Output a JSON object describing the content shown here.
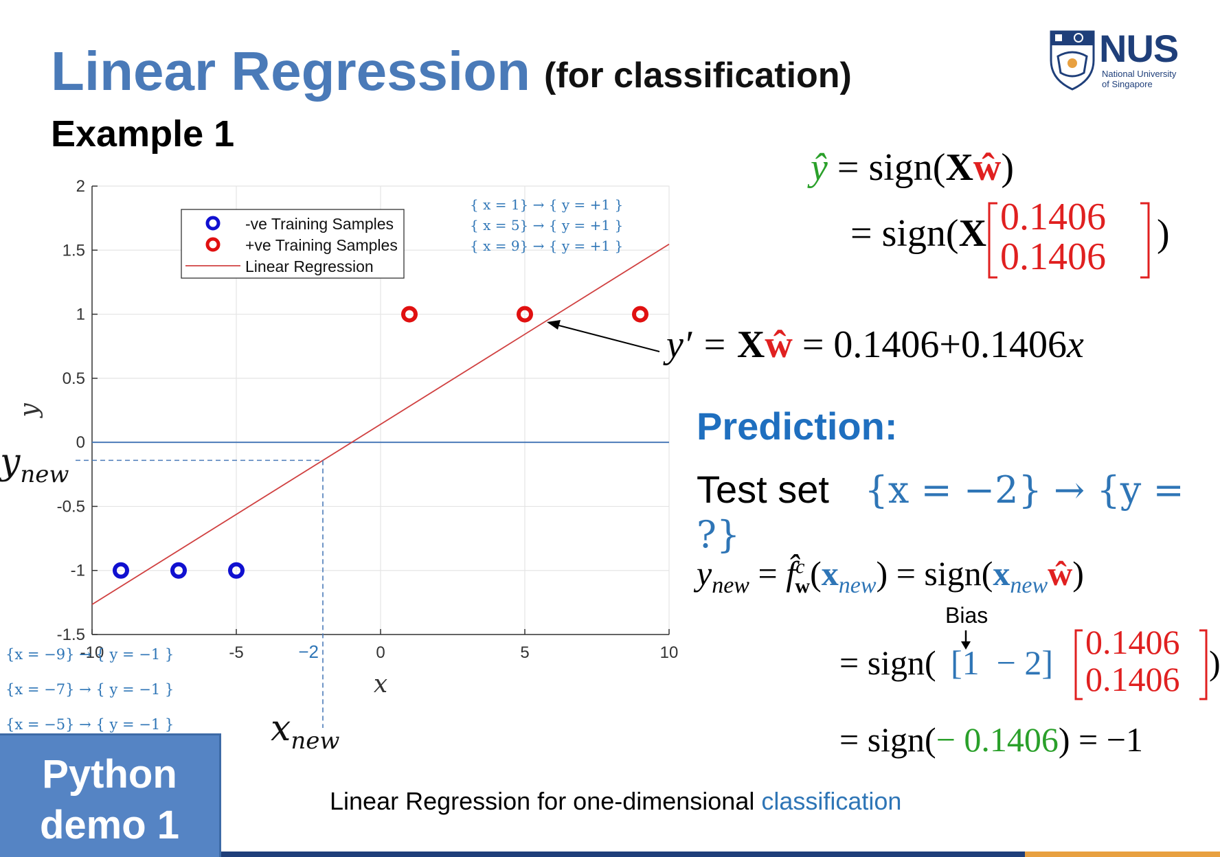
{
  "slide": {
    "title": "Linear Regression",
    "subtitle": "(for classification)",
    "example": "Example 1",
    "logo_text": "NUS",
    "logo_sub1": "National University",
    "logo_sub2": "of Singapore",
    "prediction_heading": "Prediction:",
    "test_set_label": "Test set",
    "test_set_expr": "{x = −2} → {y = ?}",
    "python_line1": "Python",
    "python_line2": "demo 1",
    "caption_main": "Linear Regression for one-dimensional ",
    "caption_accent": "classification"
  },
  "equations": {
    "yhat_lhs": "ŷ",
    "yhat_eq": " = sign(",
    "X": "X",
    "w": "ŵ",
    "close": ")",
    "eq2": "= sign(",
    "w1": "0.1406",
    "w2": "0.1406",
    "yprime_lhs": "y′ = ",
    "yprime_rhs": " = 0.1406+0.1406",
    "yprime_x": "x",
    "ynew_lhs": "y",
    "ynew_sub": "new",
    "ynew_mid": " = ",
    "f_hat": "f̂",
    "f_sup": "c",
    "f_sub": "w",
    "paren_open": "(",
    "xnew_bold": "x",
    "paren_close": ")",
    "eq_sign": " = sign(",
    "bias_label": "Bias",
    "row_vec": "[1  − 2]",
    "final_lhs": "= sign(",
    "final_val": "− 0.1406",
    "final_rhs": ") = −1"
  },
  "chart_data": {
    "type": "scatter",
    "xlabel": "x",
    "ylabel": "y",
    "xlim": [
      -10,
      10
    ],
    "ylim": [
      -1.5,
      2
    ],
    "xticks": [
      "-10",
      "-5",
      "0",
      "5",
      "10"
    ],
    "yticks": [
      "-1.5",
      "-1",
      "-0.5",
      "0",
      "0.5",
      "1",
      "1.5",
      "2"
    ],
    "grid": true,
    "legend_position": "top-left",
    "legend": [
      "-ve Training Samples",
      "+ve Training Samples",
      "Linear Regression"
    ],
    "series": [
      {
        "name": "-ve Training Samples",
        "color": "#1010d0",
        "x": [
          -9,
          -7,
          -5
        ],
        "y": [
          -1,
          -1,
          -1
        ]
      },
      {
        "name": "+ve Training Samples",
        "color": "#e01010",
        "x": [
          1,
          5,
          9
        ],
        "y": [
          1,
          1,
          1
        ]
      },
      {
        "name": "Linear Regression",
        "color": "#d04040",
        "intercept": 0.1406,
        "slope": 0.1406
      }
    ],
    "zero_line": 0,
    "x_new": -2,
    "y_new_value": -0.1406,
    "x_new_tick": "−2",
    "x_new_label": "x",
    "x_new_sub": "new",
    "y_new_label": "y",
    "y_new_sub": "new",
    "pos_annotations": [
      "{ x =  1} → { y = +1 }",
      "{ x =  5} → { y = +1 }",
      "{ x =  9} → { y = +1 }"
    ],
    "neg_annotations": [
      "{x = −9} → { y = −1 }",
      "{x = −7} → { y = −1 }",
      "{x = −5} → { y = −1 }"
    ]
  }
}
